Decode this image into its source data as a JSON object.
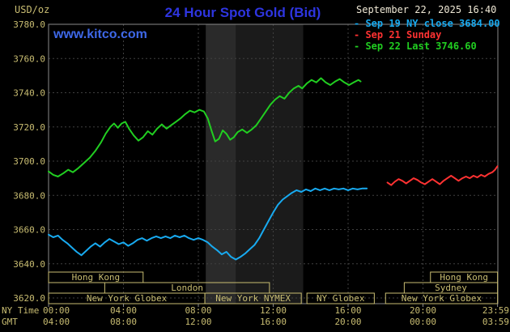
{
  "header": {
    "unit_label": "USD/oz",
    "title": "24 Hour Spot Gold (Bid)",
    "datetime": "September 22, 2025 16:40",
    "watermark": "www.kitco.com",
    "legend": [
      {
        "label": "- Sep 19 NY close 3684.00",
        "color": "#18AAF0"
      },
      {
        "label": "- Sep 21 Sunday",
        "color": "#FF3232"
      },
      {
        "label": "- Sep 22 Last 3746.60",
        "color": "#21CE21"
      }
    ]
  },
  "axes": {
    "ny_label": "NY Time",
    "gmt_label": "GMT"
  },
  "colors": {
    "background": "#000000",
    "axis_text": "#C9BD72",
    "grid": "#404040",
    "frame": "#8A8A8A",
    "title": "#2E35E0",
    "watermark": "#3E68E8",
    "datetime": "#EFE8D5"
  },
  "chart_data": {
    "type": "line",
    "title": "24 Hour Spot Gold (Bid)",
    "ylabel": "USD/oz",
    "ylim": [
      3620,
      3780
    ],
    "y_tick_step": 20,
    "x_tick_hours": [
      0,
      4,
      8,
      12,
      16,
      20,
      23.983
    ],
    "x_ticks_ny": [
      "00:00",
      "04:00",
      "08:00",
      "12:00",
      "16:00",
      "20:00",
      "23:59"
    ],
    "x_ticks_gmt": [
      "04:00",
      "08:00",
      "12:00",
      "16:00",
      "20:00",
      "00:00",
      "03:59"
    ],
    "grid": true,
    "legend_position": "top-right",
    "bands": [
      {
        "start": 8.4,
        "end": 13.6,
        "color": "#1B1B1B"
      },
      {
        "start": 8.4,
        "end": 10.0,
        "color": "#2A2A2A"
      }
    ],
    "sessions": [
      {
        "row": 1,
        "start": 0,
        "end": 5.05,
        "label": "Hong Kong"
      },
      {
        "row": 1,
        "start": 20.4,
        "end": 23.983,
        "label": "Hong Kong"
      },
      {
        "row": 2,
        "start": 3.0,
        "end": 11.8,
        "label": "London"
      },
      {
        "row": 2,
        "start": 19.0,
        "end": 23.983,
        "label": "Sydney"
      },
      {
        "row": 3,
        "start": 0,
        "end": 8.35,
        "label": "New York Globex"
      },
      {
        "row": 3,
        "start": 8.35,
        "end": 13.5,
        "label": "New York NYMEX"
      },
      {
        "row": 3,
        "start": 13.8,
        "end": 17.4,
        "label": "NY Globex"
      },
      {
        "row": 3,
        "start": 18.0,
        "end": 23.983,
        "label": "New York Globex"
      }
    ],
    "series": [
      {
        "name": "Sep 19 NY close",
        "color": "#18AAF0",
        "close": 3684.0,
        "points": [
          [
            0,
            3657
          ],
          [
            0.25,
            3655.5
          ],
          [
            0.5,
            3656.5
          ],
          [
            0.75,
            3654
          ],
          [
            1.0,
            3652
          ],
          [
            1.25,
            3649.5
          ],
          [
            1.5,
            3647
          ],
          [
            1.75,
            3645
          ],
          [
            2.0,
            3647.5
          ],
          [
            2.25,
            3650
          ],
          [
            2.5,
            3652
          ],
          [
            2.75,
            3650
          ],
          [
            3.0,
            3652.5
          ],
          [
            3.25,
            3654.5
          ],
          [
            3.5,
            3653
          ],
          [
            3.75,
            3651.5
          ],
          [
            4.0,
            3652.5
          ],
          [
            4.25,
            3650.5
          ],
          [
            4.5,
            3652
          ],
          [
            4.75,
            3654
          ],
          [
            5.0,
            3655
          ],
          [
            5.25,
            3653.5
          ],
          [
            5.5,
            3655
          ],
          [
            5.75,
            3656
          ],
          [
            6.0,
            3655
          ],
          [
            6.25,
            3656
          ],
          [
            6.5,
            3655
          ],
          [
            6.75,
            3656.5
          ],
          [
            7.0,
            3655.5
          ],
          [
            7.25,
            3656.5
          ],
          [
            7.5,
            3655
          ],
          [
            7.75,
            3654
          ],
          [
            8.0,
            3655
          ],
          [
            8.25,
            3654
          ],
          [
            8.5,
            3652.5
          ],
          [
            8.75,
            3650
          ],
          [
            9.0,
            3648
          ],
          [
            9.25,
            3645.5
          ],
          [
            9.5,
            3647
          ],
          [
            9.75,
            3644
          ],
          [
            10.0,
            3642.5
          ],
          [
            10.25,
            3644
          ],
          [
            10.5,
            3646
          ],
          [
            10.75,
            3648.5
          ],
          [
            11.0,
            3651
          ],
          [
            11.25,
            3655
          ],
          [
            11.5,
            3660
          ],
          [
            11.75,
            3665
          ],
          [
            12.0,
            3670
          ],
          [
            12.25,
            3674.5
          ],
          [
            12.5,
            3677.5
          ],
          [
            12.75,
            3679.5
          ],
          [
            13.0,
            3681.5
          ],
          [
            13.25,
            3683
          ],
          [
            13.5,
            3682
          ],
          [
            13.75,
            3683.5
          ],
          [
            14.0,
            3682.5
          ],
          [
            14.25,
            3684
          ],
          [
            14.5,
            3683
          ],
          [
            14.75,
            3684
          ],
          [
            15.0,
            3683
          ],
          [
            15.25,
            3684
          ],
          [
            15.5,
            3683.5
          ],
          [
            15.75,
            3684
          ],
          [
            16.0,
            3683
          ],
          [
            16.25,
            3684
          ],
          [
            16.5,
            3683.5
          ],
          [
            16.75,
            3684
          ],
          [
            17.0,
            3684
          ]
        ]
      },
      {
        "name": "Sep 21 Sunday",
        "color": "#FF3232",
        "points": [
          [
            18.1,
            3687.5
          ],
          [
            18.3,
            3686
          ],
          [
            18.5,
            3688
          ],
          [
            18.7,
            3689.5
          ],
          [
            18.9,
            3688.5
          ],
          [
            19.1,
            3687
          ],
          [
            19.3,
            3688.5
          ],
          [
            19.5,
            3690
          ],
          [
            19.7,
            3689
          ],
          [
            19.9,
            3687.5
          ],
          [
            20.1,
            3686.5
          ],
          [
            20.3,
            3688
          ],
          [
            20.5,
            3689.5
          ],
          [
            20.7,
            3688
          ],
          [
            20.9,
            3686.5
          ],
          [
            21.1,
            3688.5
          ],
          [
            21.3,
            3690
          ],
          [
            21.5,
            3691.5
          ],
          [
            21.7,
            3690
          ],
          [
            21.9,
            3688.5
          ],
          [
            22.1,
            3690
          ],
          [
            22.3,
            3691
          ],
          [
            22.5,
            3690
          ],
          [
            22.7,
            3691.5
          ],
          [
            22.9,
            3690.5
          ],
          [
            23.1,
            3692
          ],
          [
            23.3,
            3691
          ],
          [
            23.5,
            3692.5
          ],
          [
            23.7,
            3693.5
          ],
          [
            23.85,
            3695
          ],
          [
            23.98,
            3697
          ]
        ]
      },
      {
        "name": "Sep 22 Last",
        "color": "#21CE21",
        "last": 3746.6,
        "points": [
          [
            0,
            3694
          ],
          [
            0.25,
            3692
          ],
          [
            0.5,
            3691
          ],
          [
            0.8,
            3693
          ],
          [
            1.05,
            3695
          ],
          [
            1.3,
            3693.5
          ],
          [
            1.6,
            3696
          ],
          [
            1.9,
            3699
          ],
          [
            2.2,
            3702
          ],
          [
            2.5,
            3706
          ],
          [
            2.8,
            3711
          ],
          [
            3.05,
            3716
          ],
          [
            3.3,
            3720
          ],
          [
            3.5,
            3722
          ],
          [
            3.7,
            3719.5
          ],
          [
            3.9,
            3722
          ],
          [
            4.1,
            3723
          ],
          [
            4.3,
            3719
          ],
          [
            4.55,
            3715
          ],
          [
            4.8,
            3712
          ],
          [
            5.05,
            3714
          ],
          [
            5.3,
            3717.5
          ],
          [
            5.55,
            3715.5
          ],
          [
            5.8,
            3719
          ],
          [
            6.05,
            3721.5
          ],
          [
            6.3,
            3719
          ],
          [
            6.55,
            3721
          ],
          [
            6.8,
            3723
          ],
          [
            7.05,
            3725
          ],
          [
            7.3,
            3727.5
          ],
          [
            7.55,
            3729.5
          ],
          [
            7.8,
            3728.5
          ],
          [
            8.05,
            3730
          ],
          [
            8.3,
            3729
          ],
          [
            8.5,
            3725
          ],
          [
            8.7,
            3718
          ],
          [
            8.9,
            3711.5
          ],
          [
            9.1,
            3713
          ],
          [
            9.3,
            3718
          ],
          [
            9.5,
            3716
          ],
          [
            9.7,
            3712.5
          ],
          [
            9.9,
            3714
          ],
          [
            10.1,
            3717
          ],
          [
            10.35,
            3718.5
          ],
          [
            10.6,
            3716.5
          ],
          [
            10.85,
            3718.5
          ],
          [
            11.1,
            3721
          ],
          [
            11.35,
            3725
          ],
          [
            11.6,
            3729
          ],
          [
            11.85,
            3733
          ],
          [
            12.1,
            3736
          ],
          [
            12.35,
            3738
          ],
          [
            12.6,
            3736.5
          ],
          [
            12.85,
            3740
          ],
          [
            13.1,
            3742.5
          ],
          [
            13.35,
            3744
          ],
          [
            13.55,
            3742.5
          ],
          [
            13.8,
            3745.5
          ],
          [
            14.05,
            3747.5
          ],
          [
            14.3,
            3746
          ],
          [
            14.55,
            3748.5
          ],
          [
            14.8,
            3746
          ],
          [
            15.05,
            3744.5
          ],
          [
            15.3,
            3746.5
          ],
          [
            15.55,
            3748
          ],
          [
            15.8,
            3746
          ],
          [
            16.05,
            3744.5
          ],
          [
            16.3,
            3746
          ],
          [
            16.55,
            3747.5
          ],
          [
            16.67,
            3746.6
          ]
        ]
      }
    ]
  }
}
